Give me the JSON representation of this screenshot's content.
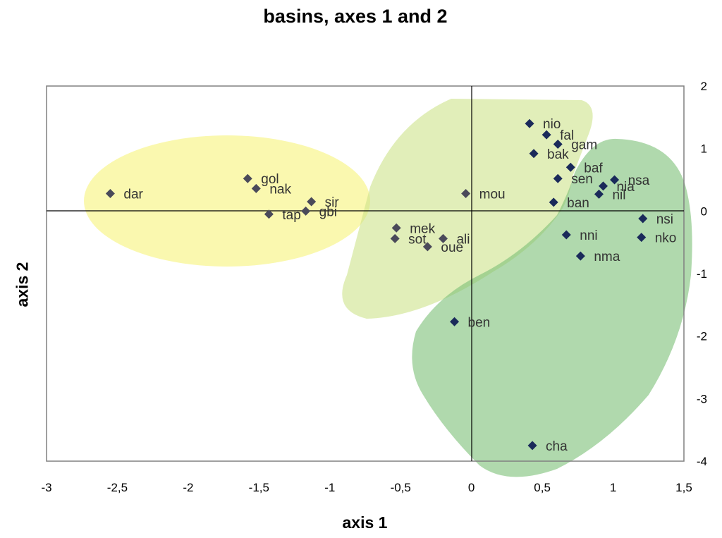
{
  "chart_data": {
    "type": "scatter",
    "title": "basins, axes  1 and 2",
    "xlabel": "axis 1",
    "ylabel": "axis 2",
    "xlim": [
      -3,
      1.5
    ],
    "ylim": [
      -4,
      2
    ],
    "x_ticks": [
      "-3",
      "-2,5",
      "-2",
      "-1,5",
      "-1",
      "-0,5",
      "0",
      "0,5",
      "1",
      "1,5"
    ],
    "y_ticks": [
      "2",
      "1",
      "0",
      "-1",
      "-2",
      "-3",
      "-4"
    ],
    "grid": false,
    "legend": "none",
    "marker_colors": {
      "group_a": "#4a4a5a",
      "group_b": "#1a2a5a"
    },
    "group_colors": {
      "yellow": "#f6f37a",
      "light_green": "#d6e99a",
      "green": "#8fc98a"
    },
    "points": [
      {
        "label": "dar",
        "x": -2.55,
        "y": 0.28
      },
      {
        "label": "gol",
        "x": -1.58,
        "y": 0.52
      },
      {
        "label": "nak",
        "x": -1.52,
        "y": 0.36
      },
      {
        "label": "sir",
        "x": -1.13,
        "y": 0.15
      },
      {
        "label": "gbi",
        "x": -1.17,
        "y": 0.0
      },
      {
        "label": "tap",
        "x": -1.43,
        "y": -0.05
      },
      {
        "label": "mou",
        "x": -0.04,
        "y": 0.28
      },
      {
        "label": "mek",
        "x": -0.53,
        "y": -0.27
      },
      {
        "label": "sot",
        "x": -0.54,
        "y": -0.44
      },
      {
        "label": "ali",
        "x": -0.2,
        "y": -0.44
      },
      {
        "label": "oue",
        "x": -0.31,
        "y": -0.57
      },
      {
        "label": "nio",
        "x": 0.41,
        "y": 1.4
      },
      {
        "label": "fal",
        "x": 0.53,
        "y": 1.22
      },
      {
        "label": "gam",
        "x": 0.61,
        "y": 1.07
      },
      {
        "label": "bak",
        "x": 0.44,
        "y": 0.92
      },
      {
        "label": "baf",
        "x": 0.7,
        "y": 0.7
      },
      {
        "label": "sen",
        "x": 0.61,
        "y": 0.52
      },
      {
        "label": "nsa",
        "x": 1.01,
        "y": 0.5
      },
      {
        "label": "nia",
        "x": 0.93,
        "y": 0.4
      },
      {
        "label": "nil",
        "x": 0.9,
        "y": 0.27
      },
      {
        "label": "ban",
        "x": 0.58,
        "y": 0.14
      },
      {
        "label": "nsi",
        "x": 1.21,
        "y": -0.12
      },
      {
        "label": "nni",
        "x": 0.67,
        "y": -0.38
      },
      {
        "label": "nko",
        "x": 1.2,
        "y": -0.42
      },
      {
        "label": "nma",
        "x": 0.77,
        "y": -0.72
      },
      {
        "label": "ben",
        "x": -0.12,
        "y": -1.77
      },
      {
        "label": "cha",
        "x": 0.43,
        "y": -3.75
      }
    ]
  }
}
